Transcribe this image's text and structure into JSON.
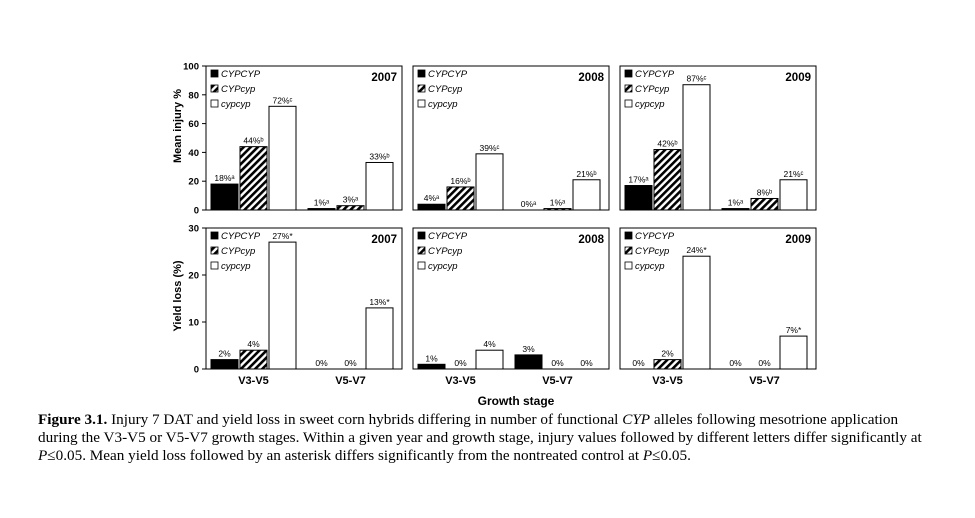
{
  "chart_data": {
    "type": "bar",
    "layout": "2x3 panel grid",
    "xlabel": "Growth stage",
    "categories": [
      "V3-V5",
      "V5-V7"
    ],
    "series_names": [
      "CYPCYP",
      "CYPcyp",
      "cypcyp"
    ],
    "series_colors": [
      "#000000",
      "hatched",
      "#ffffff"
    ],
    "legend_position": "top-left",
    "rows": [
      {
        "id": "injury",
        "ylabel": "Mean injury %",
        "ylim": [
          0,
          100
        ],
        "yticks": [
          "0",
          "20",
          "40",
          "60",
          "80",
          "100"
        ],
        "panels": [
          {
            "year": "2007",
            "values": [
              [
                18,
                44,
                72
              ],
              [
                1,
                3,
                33
              ]
            ],
            "labels": [
              [
                "18%ᵃ",
                "44%ᵇ",
                "72%ᶜ"
              ],
              [
                "1%ᵃ",
                "3%ᵃ",
                "33%ᵇ"
              ]
            ]
          },
          {
            "year": "2008",
            "values": [
              [
                4,
                16,
                39
              ],
              [
                0,
                1,
                21
              ]
            ],
            "labels": [
              [
                "4%ᵃ",
                "16%ᵇ",
                "39%ᶜ"
              ],
              [
                "0%ᵃ",
                "1%ᵃ",
                "21%ᵇ"
              ]
            ]
          },
          {
            "year": "2009",
            "values": [
              [
                17,
                42,
                87
              ],
              [
                1,
                8,
                21
              ]
            ],
            "labels": [
              [
                "17%ᵃ",
                "42%ᵇ",
                "87%ᶜ"
              ],
              [
                "1%ᵃ",
                "8%ᵇ",
                "21%ᶜ"
              ]
            ]
          }
        ]
      },
      {
        "id": "yield",
        "ylabel": "Yield loss (%)",
        "ylim": [
          0,
          30
        ],
        "yticks": [
          "0",
          "10",
          "20",
          "30"
        ],
        "panels": [
          {
            "year": "2007",
            "values": [
              [
                2,
                4,
                27
              ],
              [
                0,
                0,
                13
              ]
            ],
            "labels": [
              [
                "2%",
                "4%",
                "27%*"
              ],
              [
                "0%",
                "0%",
                "13%*"
              ]
            ]
          },
          {
            "year": "2008",
            "values": [
              [
                1,
                0,
                4
              ],
              [
                3,
                0,
                0
              ]
            ],
            "labels": [
              [
                "1%",
                "0%",
                "4%"
              ],
              [
                "3%",
                "0%",
                "0%"
              ]
            ]
          },
          {
            "year": "2009",
            "values": [
              [
                0,
                2,
                24
              ],
              [
                0,
                0,
                7
              ]
            ],
            "labels": [
              [
                "0%",
                "2%",
                "24%*"
              ],
              [
                "0%",
                "0%",
                "7%*"
              ]
            ]
          }
        ]
      }
    ]
  },
  "caption": {
    "label": "Figure 3.1.",
    "seg1": "  Injury 7 DAT and yield loss in sweet corn hybrids differing in number of functional ",
    "italic1": "CYP",
    "seg2": " alleles following mesotrione application during the V3-V5 or V5-V7 growth stages.  Within a given year and growth stage, injury values followed by different letters differ significantly at ",
    "italic2": "P",
    "seg3": "≤0.05.  Mean yield loss followed by an asterisk differs significantly from the nontreated control at ",
    "italic3": "P",
    "seg4": "≤0.05."
  }
}
